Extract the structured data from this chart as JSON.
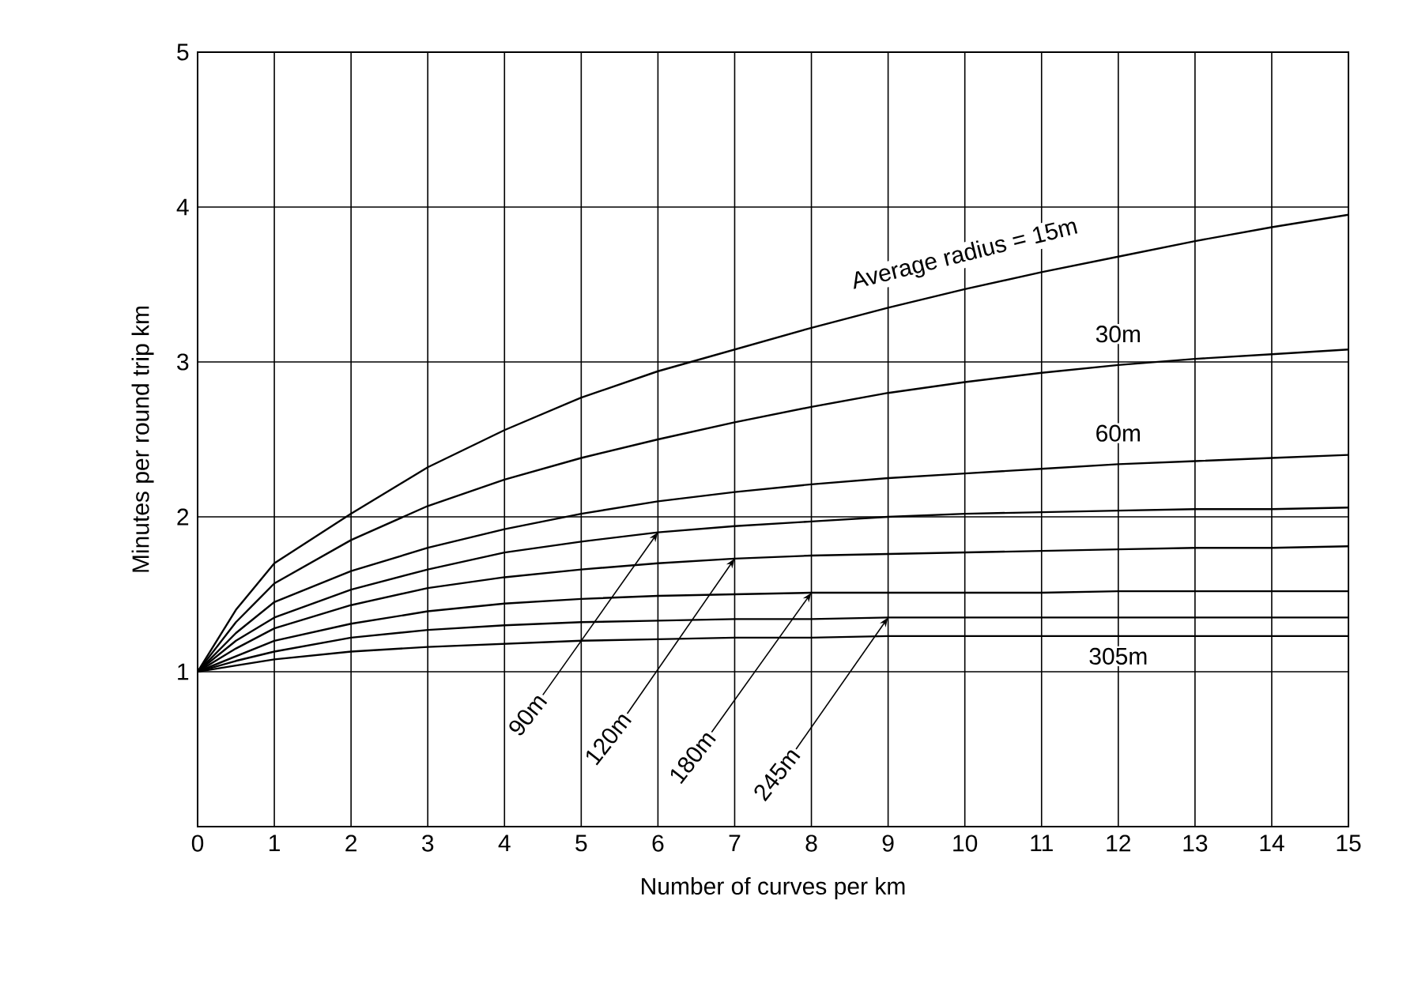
{
  "chart_data": {
    "type": "line",
    "xlabel": "Number of curves per km",
    "ylabel": "Minutes per round trip km",
    "x": [
      0,
      0.5,
      1,
      2,
      3,
      4,
      5,
      6,
      7,
      8,
      9,
      10,
      11,
      12,
      13,
      14,
      15
    ],
    "series": [
      {
        "name": "Average radius = 15m",
        "color": "#000000",
        "values": [
          1.0,
          1.4,
          1.7,
          2.02,
          2.32,
          2.56,
          2.77,
          2.94,
          3.08,
          3.22,
          3.35,
          3.47,
          3.58,
          3.68,
          3.78,
          3.87,
          3.95
        ]
      },
      {
        "name": "30m",
        "color": "#000000",
        "values": [
          1.0,
          1.32,
          1.57,
          1.85,
          2.07,
          2.24,
          2.38,
          2.5,
          2.61,
          2.71,
          2.8,
          2.87,
          2.93,
          2.98,
          3.02,
          3.05,
          3.08
        ]
      },
      {
        "name": "60m",
        "color": "#000000",
        "values": [
          1.0,
          1.25,
          1.45,
          1.65,
          1.8,
          1.92,
          2.02,
          2.1,
          2.16,
          2.21,
          2.25,
          2.28,
          2.31,
          2.34,
          2.36,
          2.38,
          2.4
        ]
      },
      {
        "name": "90m",
        "color": "#000000",
        "values": [
          1.0,
          1.2,
          1.35,
          1.53,
          1.66,
          1.77,
          1.84,
          1.9,
          1.94,
          1.97,
          2.0,
          2.02,
          2.03,
          2.04,
          2.05,
          2.05,
          2.06
        ]
      },
      {
        "name": "120m",
        "color": "#000000",
        "values": [
          1.0,
          1.15,
          1.28,
          1.43,
          1.54,
          1.61,
          1.66,
          1.7,
          1.73,
          1.75,
          1.76,
          1.77,
          1.78,
          1.79,
          1.8,
          1.8,
          1.81
        ]
      },
      {
        "name": "180m",
        "color": "#000000",
        "values": [
          1.0,
          1.1,
          1.2,
          1.31,
          1.39,
          1.44,
          1.47,
          1.49,
          1.5,
          1.51,
          1.51,
          1.51,
          1.51,
          1.52,
          1.52,
          1.52,
          1.52
        ]
      },
      {
        "name": "245m",
        "color": "#000000",
        "values": [
          1.0,
          1.07,
          1.13,
          1.22,
          1.27,
          1.3,
          1.32,
          1.33,
          1.34,
          1.34,
          1.35,
          1.35,
          1.35,
          1.35,
          1.35,
          1.35,
          1.35
        ]
      },
      {
        "name": "305m",
        "color": "#000000",
        "values": [
          1.0,
          1.04,
          1.08,
          1.13,
          1.16,
          1.18,
          1.2,
          1.21,
          1.22,
          1.22,
          1.23,
          1.23,
          1.23,
          1.23,
          1.23,
          1.23,
          1.23
        ]
      }
    ],
    "xlim": [
      0,
      15
    ],
    "ylim": [
      0,
      5
    ],
    "xticks": [
      0,
      1,
      2,
      3,
      4,
      5,
      6,
      7,
      8,
      9,
      10,
      11,
      12,
      13,
      14,
      15
    ],
    "yticks": [
      1,
      2,
      3,
      4,
      5
    ],
    "grid": true,
    "line_style": "solid"
  }
}
